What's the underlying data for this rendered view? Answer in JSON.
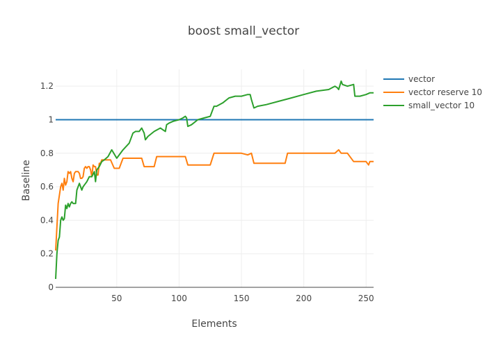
{
  "chart_data": {
    "type": "line",
    "title": "boost small_vector",
    "xlabel": "Elements",
    "ylabel": "Baseline",
    "xlim": [
      1,
      256
    ],
    "ylim": [
      0,
      1.3
    ],
    "xticks": [
      50,
      100,
      150,
      200,
      250
    ],
    "yticks": [
      0,
      0.2,
      0.4,
      0.6,
      0.8,
      1,
      1.2
    ],
    "grid": true,
    "legend_position": "top-right",
    "series": [
      {
        "name": "vector",
        "color": "#1f77b4",
        "x": [
          1,
          256
        ],
        "y": [
          1,
          1
        ]
      },
      {
        "name": "vector reserve 10",
        "color": "#ff7f0e",
        "x": [
          1,
          3,
          5,
          6,
          7,
          8,
          9,
          10,
          11,
          12,
          13,
          14,
          15,
          16,
          17,
          18,
          19,
          20,
          21,
          22,
          23,
          24,
          25,
          26,
          27,
          28,
          29,
          30,
          31,
          32,
          33,
          34,
          35,
          36,
          37,
          38,
          40,
          45,
          48,
          52,
          55,
          60,
          65,
          70,
          72,
          75,
          80,
          82,
          85,
          90,
          95,
          100,
          105,
          107,
          110,
          115,
          120,
          125,
          128,
          130,
          140,
          150,
          155,
          158,
          160,
          170,
          180,
          185,
          187,
          190,
          200,
          210,
          220,
          225,
          228,
          230,
          235,
          240,
          245,
          250,
          252,
          253,
          256
        ],
        "y": [
          0.22,
          0.5,
          0.6,
          0.62,
          0.58,
          0.65,
          0.61,
          0.63,
          0.69,
          0.68,
          0.69,
          0.65,
          0.63,
          0.68,
          0.69,
          0.69,
          0.69,
          0.68,
          0.65,
          0.65,
          0.66,
          0.71,
          0.72,
          0.71,
          0.72,
          0.72,
          0.7,
          0.66,
          0.73,
          0.72,
          0.72,
          0.67,
          0.67,
          0.74,
          0.74,
          0.76,
          0.76,
          0.76,
          0.71,
          0.71,
          0.77,
          0.77,
          0.77,
          0.77,
          0.72,
          0.72,
          0.72,
          0.78,
          0.78,
          0.78,
          0.78,
          0.78,
          0.78,
          0.73,
          0.73,
          0.73,
          0.73,
          0.73,
          0.8,
          0.8,
          0.8,
          0.8,
          0.79,
          0.8,
          0.74,
          0.74,
          0.74,
          0.74,
          0.8,
          0.8,
          0.8,
          0.8,
          0.8,
          0.8,
          0.82,
          0.8,
          0.8,
          0.75,
          0.75,
          0.75,
          0.73,
          0.75,
          0.75
        ]
      },
      {
        "name": "small_vector 10",
        "color": "#2ca02c",
        "x": [
          1,
          2,
          3,
          4,
          5,
          6,
          7,
          8,
          9,
          10,
          11,
          12,
          13,
          14,
          15,
          17,
          18,
          20,
          22,
          23,
          24,
          26,
          28,
          30,
          32,
          33,
          34,
          36,
          38,
          40,
          43,
          46,
          50,
          55,
          60,
          63,
          65,
          68,
          70,
          72,
          73,
          75,
          80,
          85,
          89,
          90,
          92,
          95,
          100,
          103,
          105,
          106,
          107,
          110,
          115,
          120,
          125,
          128,
          130,
          135,
          140,
          145,
          150,
          155,
          157,
          158,
          160,
          163,
          170,
          180,
          185,
          190,
          200,
          210,
          220,
          225,
          227,
          228,
          230,
          231,
          235,
          240,
          241,
          245,
          250,
          253,
          256
        ],
        "y": [
          0.05,
          0.2,
          0.28,
          0.3,
          0.4,
          0.42,
          0.4,
          0.41,
          0.49,
          0.47,
          0.5,
          0.48,
          0.5,
          0.51,
          0.5,
          0.5,
          0.58,
          0.62,
          0.58,
          0.6,
          0.61,
          0.63,
          0.66,
          0.66,
          0.69,
          0.63,
          0.7,
          0.72,
          0.75,
          0.76,
          0.78,
          0.82,
          0.77,
          0.82,
          0.86,
          0.92,
          0.93,
          0.93,
          0.95,
          0.92,
          0.88,
          0.9,
          0.93,
          0.95,
          0.93,
          0.97,
          0.98,
          0.99,
          1.0,
          1.01,
          1.02,
          1.01,
          0.96,
          0.97,
          1.0,
          1.01,
          1.02,
          1.08,
          1.08,
          1.1,
          1.13,
          1.14,
          1.14,
          1.15,
          1.15,
          1.12,
          1.07,
          1.08,
          1.09,
          1.11,
          1.12,
          1.13,
          1.15,
          1.17,
          1.18,
          1.2,
          1.19,
          1.18,
          1.23,
          1.21,
          1.2,
          1.21,
          1.14,
          1.14,
          1.15,
          1.16,
          1.16
        ]
      }
    ]
  }
}
